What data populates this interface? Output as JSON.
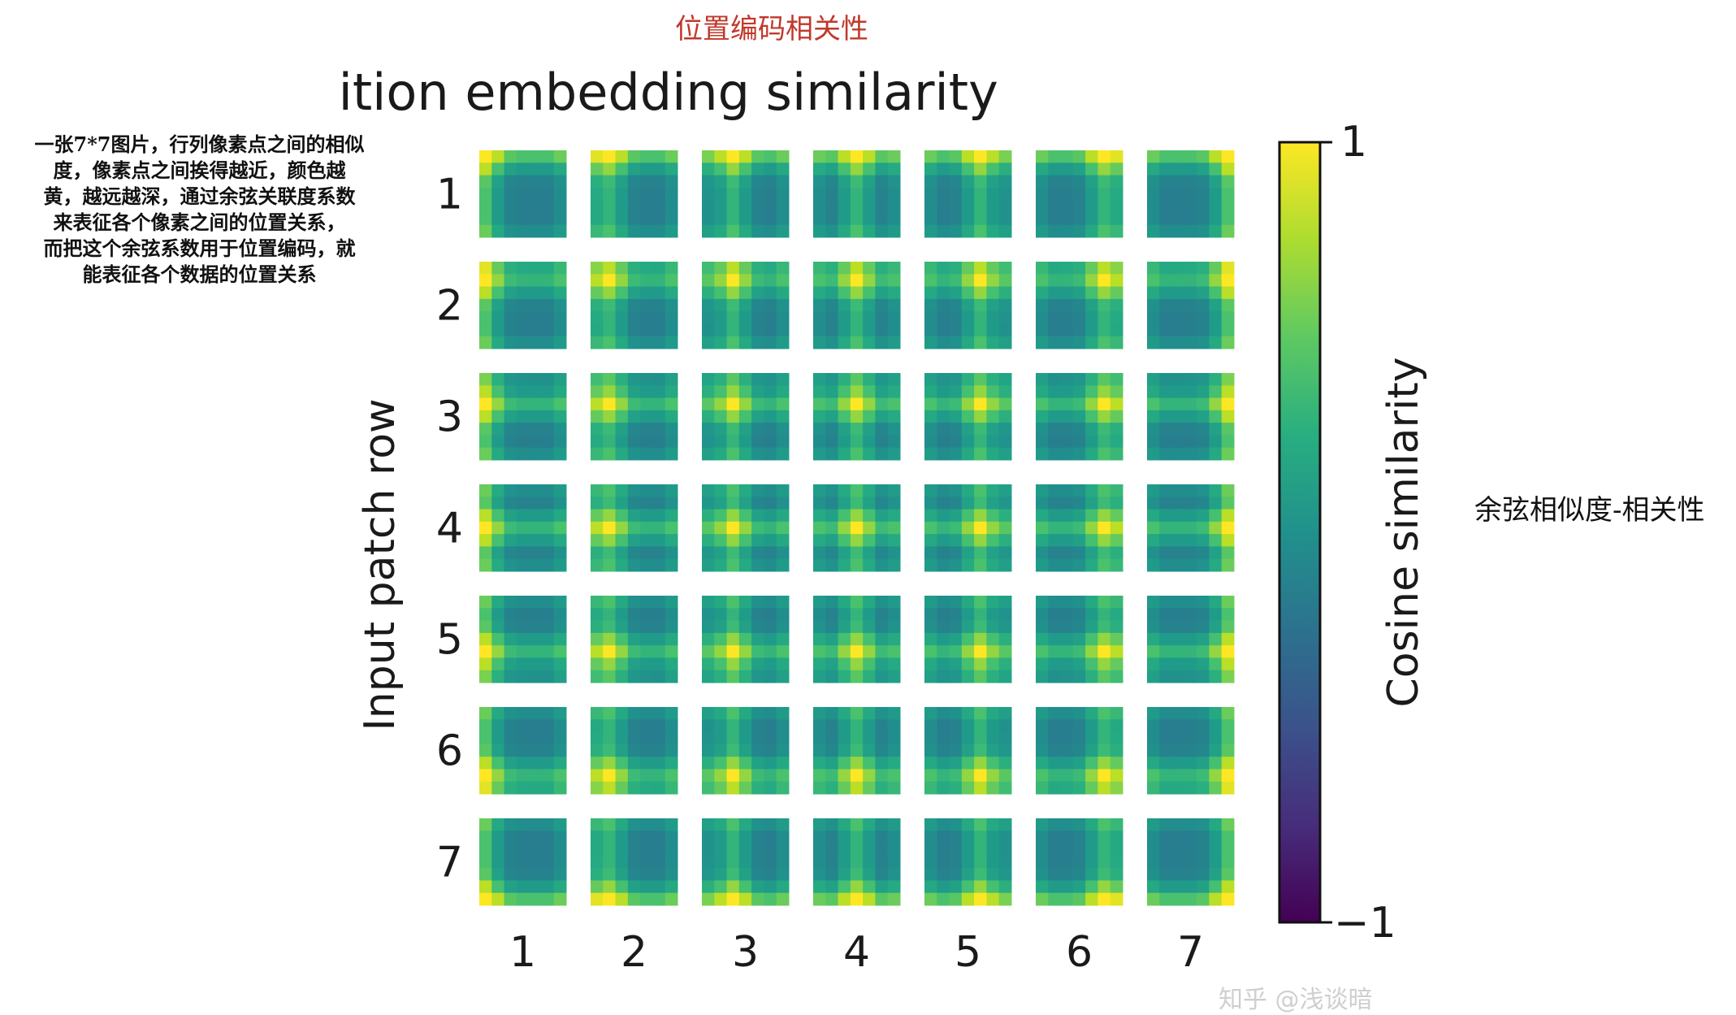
{
  "caption": "位置编码相关性",
  "note_left": "一张7*7图片，行列像素点之间的相似\n度，像素点之间挨得越近，颜色越\n黄，越远越深，通过余弦关联度系数\n来表征各个像素之间的位置关系，\n而把这个余弦系数用于位置编码，就\n能表征各个数据的位置关系",
  "note_right": "余弦相似度-相关性",
  "watermark": "知乎 @浅谈暗",
  "chart_data": {
    "type": "heatmap",
    "title": "Position embedding similarity",
    "ylabel": "Input patch row",
    "xlabel": "",
    "colorbar_label": "Cosine similarity",
    "colorbar_ticks": [
      "1",
      "−1"
    ],
    "colorbar_range": [
      -1,
      1
    ],
    "colormap": "viridis",
    "grid_rows": 7,
    "grid_cols": 7,
    "row_labels": [
      "1",
      "2",
      "3",
      "4",
      "5",
      "6",
      "7"
    ],
    "col_labels": [
      "1",
      "2",
      "3",
      "4",
      "5",
      "6",
      "7"
    ],
    "cell_resolution": 7,
    "description": "Each cell (r,c) is a 7x7 map of cosine similarity between the position embedding of patch (r,c) and every other patch; similarity peaks (≈1, yellow) at the same row/column and decreases with distance."
  }
}
